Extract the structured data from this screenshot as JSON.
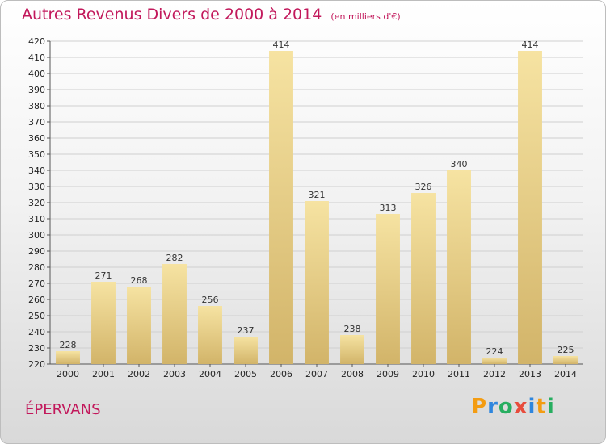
{
  "title": "Autres Revenus Divers de 2000 à 2014",
  "subtitle": "(en milliers d'€)",
  "commune": "ÉPERVANS",
  "logo": {
    "letters": [
      "P",
      "r",
      "o",
      "x",
      "i",
      "t",
      "i"
    ],
    "colors": [
      "#f39c12",
      "#2e86de",
      "#27ae60",
      "#e74c3c",
      "#2e86de",
      "#f39c12",
      "#27ae60"
    ]
  },
  "colors": {
    "bar_light": "#f6e3a2",
    "bar_dark": "#d2b469",
    "title": "#c2185b",
    "grid": "#cfcfcf"
  },
  "chart_data": {
    "type": "bar",
    "title": "Autres Revenus Divers de 2000 à 2014",
    "subtitle": "(en milliers d'€)",
    "categories": [
      "2000",
      "2001",
      "2002",
      "2003",
      "2004",
      "2005",
      "2006",
      "2007",
      "2008",
      "2009",
      "2010",
      "2011",
      "2012",
      "2013",
      "2014"
    ],
    "values": [
      228,
      271,
      268,
      282,
      256,
      237,
      414,
      321,
      238,
      313,
      326,
      340,
      224,
      414,
      225
    ],
    "ylim": [
      220,
      420
    ],
    "ytick_step": 10,
    "grid": true
  }
}
